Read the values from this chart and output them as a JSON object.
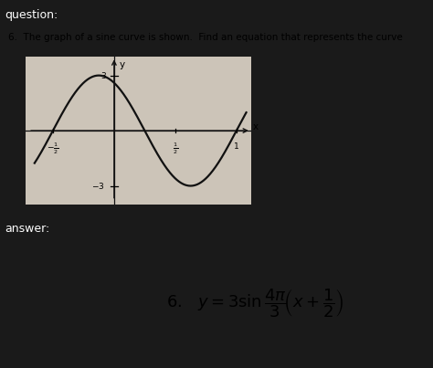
{
  "question_text": "6.  The graph of a sine curve is shown.  Find an equation that represents the curve",
  "question_label": "question:",
  "answer_label": "answer:",
  "graph_bg": "#ccc4b8",
  "question_bg": "#d6d0c8",
  "header_bg": "#3a3a3a",
  "answer_bar_bg": "#3a3a3a",
  "bottom_bg": "#1a1a1a",
  "answer_box_bg": "#c8c0b0",
  "curve_color": "#111111",
  "axis_color": "#111111",
  "amplitude": 3,
  "phase_shift": 0.5,
  "xlim": [
    -0.72,
    1.12
  ],
  "ylim": [
    -4.0,
    4.0
  ],
  "x_ticks": [
    -0.5,
    0.5,
    1.0
  ],
  "y_tick_pos": 3,
  "y_tick_neg": -3
}
